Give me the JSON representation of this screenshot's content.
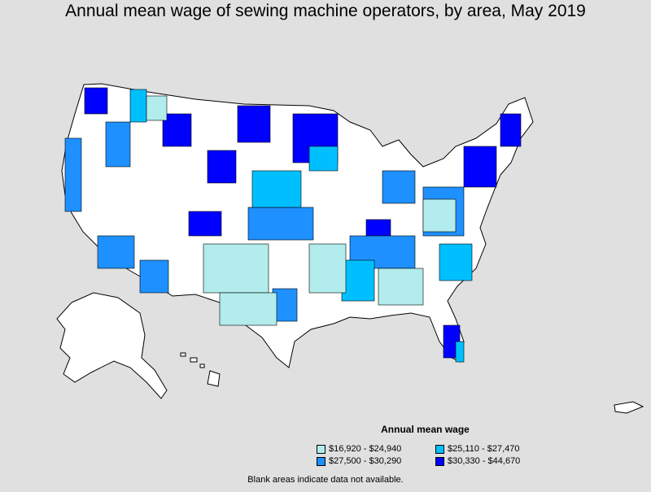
{
  "title": "Annual mean wage of sewing machine operators, by area, May 2019",
  "legend": {
    "title": "Annual mean wage",
    "items": [
      {
        "label": "$16,920 - $24,940",
        "color": "#b2ecec"
      },
      {
        "label": "$25,110 - $27,470",
        "color": "#00bfff"
      },
      {
        "label": "$27,500 - $30,290",
        "color": "#1e90ff"
      },
      {
        "label": "$30,330 - $44,670",
        "color": "#0000ff"
      }
    ]
  },
  "footnote": "Blank areas indicate data not available.",
  "colors": {
    "background": "#e0e0e0",
    "land": "#ffffff",
    "border": "#000000"
  }
}
